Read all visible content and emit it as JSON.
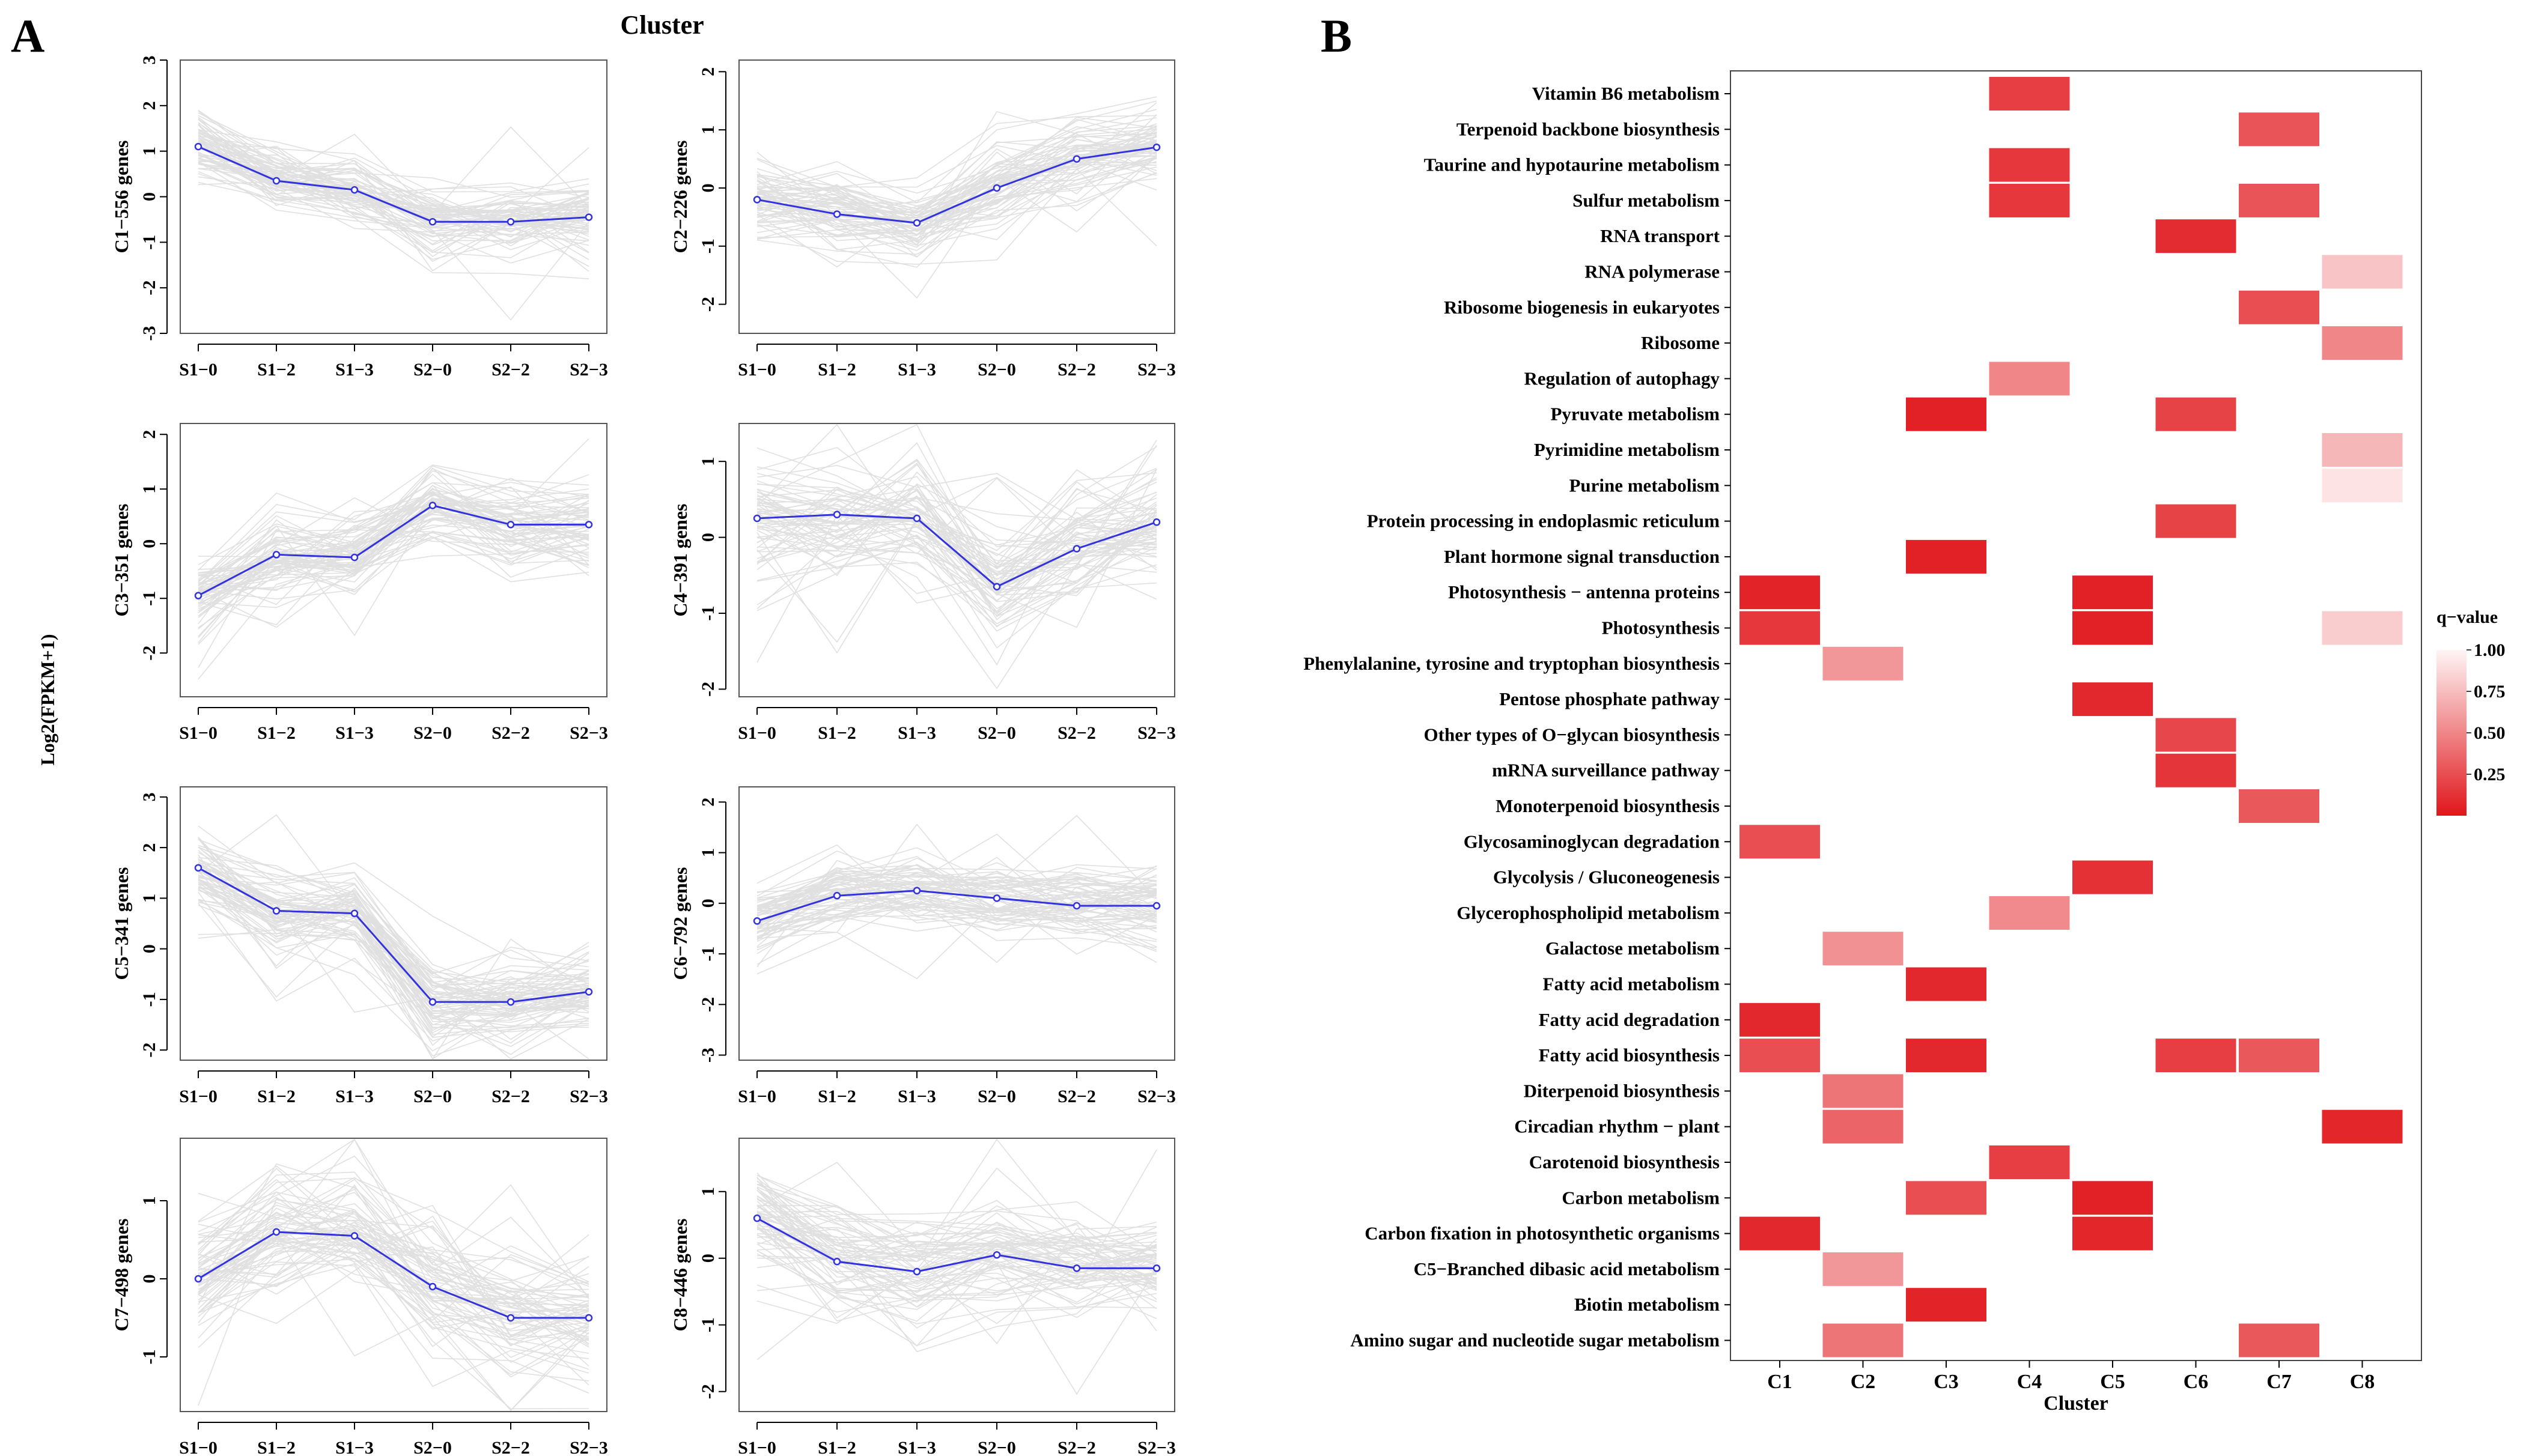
{
  "panels": {
    "left_letter": "A",
    "right_letter": "B"
  },
  "chart_data": [
    {
      "type": "line",
      "title": "Cluster",
      "ylabel": "Log2(FPKM+1)",
      "x": [
        "S1−0",
        "S1−2",
        "S1−3",
        "S2−0",
        "S2−2",
        "S2−3"
      ],
      "subplots": [
        {
          "label": "C1−556 genes",
          "ylim": [
            -3,
            3
          ],
          "yticks": [
            -3,
            -2,
            -1,
            0,
            1,
            2,
            3
          ],
          "values": [
            1.1,
            0.35,
            0.15,
            -0.55,
            -0.55,
            -0.45
          ]
        },
        {
          "label": "C2−226 genes",
          "ylim": [
            -2.5,
            2.2
          ],
          "yticks": [
            -2,
            -1,
            0,
            1,
            2
          ],
          "values": [
            -0.2,
            -0.45,
            -0.6,
            0.0,
            0.5,
            0.7
          ]
        },
        {
          "label": "C3−351 genes",
          "ylim": [
            -2.8,
            2.2
          ],
          "yticks": [
            -2,
            -1,
            0,
            1,
            2
          ],
          "values": [
            -0.95,
            -0.2,
            -0.25,
            0.7,
            0.35,
            0.35
          ]
        },
        {
          "label": "C4−391 genes",
          "ylim": [
            -2.1,
            1.5
          ],
          "yticks": [
            -2,
            -1,
            0,
            1
          ],
          "values": [
            0.25,
            0.3,
            0.25,
            -0.65,
            -0.15,
            0.2
          ]
        },
        {
          "label": "C5−341 genes",
          "ylim": [
            -2.2,
            3.2
          ],
          "yticks": [
            -2,
            -1,
            0,
            1,
            2,
            3
          ],
          "values": [
            1.6,
            0.75,
            0.7,
            -1.05,
            -1.05,
            -0.85
          ]
        },
        {
          "label": "C6−792 genes",
          "ylim": [
            -3.1,
            2.3
          ],
          "yticks": [
            -3,
            -2,
            -1,
            0,
            1,
            2
          ],
          "values": [
            -0.35,
            0.15,
            0.25,
            0.1,
            -0.05,
            -0.05
          ]
        },
        {
          "label": "C7−498 genes",
          "ylim": [
            -1.7,
            1.8
          ],
          "yticks": [
            -1,
            0,
            1
          ],
          "values": [
            0.0,
            0.6,
            0.55,
            -0.1,
            -0.5,
            -0.5
          ]
        },
        {
          "label": "C8−446 genes",
          "ylim": [
            -2.3,
            1.8
          ],
          "yticks": [
            -2,
            -1,
            0,
            1
          ],
          "values": [
            0.6,
            -0.05,
            -0.2,
            0.05,
            -0.15,
            -0.15
          ]
        }
      ]
    },
    {
      "type": "heatmap",
      "xlabel": "Cluster",
      "clusters": [
        "C1",
        "C2",
        "C3",
        "C4",
        "C5",
        "C6",
        "C7",
        "C8"
      ],
      "pathways": [
        "Vitamin B6 metabolism",
        "Terpenoid backbone biosynthesis",
        "Taurine and hypotaurine metabolism",
        "Sulfur metabolism",
        "RNA transport",
        "RNA polymerase",
        "Ribosome biogenesis in eukaryotes",
        "Ribosome",
        "Regulation of autophagy",
        "Pyruvate metabolism",
        "Pyrimidine metabolism",
        "Purine metabolism",
        "Protein processing in endoplasmic reticulum",
        "Plant hormone signal transduction",
        "Photosynthesis − antenna proteins",
        "Photosynthesis",
        "Phenylalanine, tyrosine and tryptophan biosynthesis",
        "Pentose phosphate pathway",
        "Other types of O−glycan biosynthesis",
        "mRNA surveillance pathway",
        "Monoterpenoid biosynthesis",
        "Glycosaminoglycan degradation",
        "Glycolysis / Gluconeogenesis",
        "Glycerophospholipid metabolism",
        "Galactose metabolism",
        "Fatty acid metabolism",
        "Fatty acid degradation",
        "Fatty acid biosynthesis",
        "Diterpenoid biosynthesis",
        "Circadian rhythm − plant",
        "Carotenoid biosynthesis",
        "Carbon metabolism",
        "Carbon fixation in photosynthetic organisms",
        "C5−Branched dibasic acid metabolism",
        "Biotin metabolism",
        "Amino sugar and nucleotide sugar metabolism"
      ],
      "cells": [
        {
          "pathway": 0,
          "cluster": 3,
          "q": 0.18
        },
        {
          "pathway": 1,
          "cluster": 6,
          "q": 0.28
        },
        {
          "pathway": 2,
          "cluster": 3,
          "q": 0.15
        },
        {
          "pathway": 3,
          "cluster": 3,
          "q": 0.15
        },
        {
          "pathway": 3,
          "cluster": 6,
          "q": 0.28
        },
        {
          "pathway": 4,
          "cluster": 5,
          "q": 0.1
        },
        {
          "pathway": 5,
          "cluster": 7,
          "q": 0.78
        },
        {
          "pathway": 6,
          "cluster": 6,
          "q": 0.25
        },
        {
          "pathway": 7,
          "cluster": 7,
          "q": 0.5
        },
        {
          "pathway": 8,
          "cluster": 3,
          "q": 0.5
        },
        {
          "pathway": 9,
          "cluster": 2,
          "q": 0.05
        },
        {
          "pathway": 9,
          "cluster": 5,
          "q": 0.2
        },
        {
          "pathway": 10,
          "cluster": 7,
          "q": 0.72
        },
        {
          "pathway": 11,
          "cluster": 7,
          "q": 0.92
        },
        {
          "pathway": 12,
          "cluster": 5,
          "q": 0.2
        },
        {
          "pathway": 13,
          "cluster": 2,
          "q": 0.05
        },
        {
          "pathway": 14,
          "cluster": 0,
          "q": 0.06
        },
        {
          "pathway": 14,
          "cluster": 4,
          "q": 0.05
        },
        {
          "pathway": 15,
          "cluster": 0,
          "q": 0.15
        },
        {
          "pathway": 15,
          "cluster": 4,
          "q": 0.05
        },
        {
          "pathway": 15,
          "cluster": 7,
          "q": 0.82
        },
        {
          "pathway": 16,
          "cluster": 1,
          "q": 0.58
        },
        {
          "pathway": 17,
          "cluster": 4,
          "q": 0.08
        },
        {
          "pathway": 18,
          "cluster": 5,
          "q": 0.22
        },
        {
          "pathway": 19,
          "cluster": 5,
          "q": 0.14
        },
        {
          "pathway": 20,
          "cluster": 6,
          "q": 0.3
        },
        {
          "pathway": 21,
          "cluster": 0,
          "q": 0.25
        },
        {
          "pathway": 22,
          "cluster": 4,
          "q": 0.12
        },
        {
          "pathway": 23,
          "cluster": 3,
          "q": 0.52
        },
        {
          "pathway": 24,
          "cluster": 1,
          "q": 0.55
        },
        {
          "pathway": 25,
          "cluster": 2,
          "q": 0.08
        },
        {
          "pathway": 26,
          "cluster": 0,
          "q": 0.08
        },
        {
          "pathway": 27,
          "cluster": 0,
          "q": 0.25
        },
        {
          "pathway": 27,
          "cluster": 2,
          "q": 0.08
        },
        {
          "pathway": 27,
          "cluster": 5,
          "q": 0.18
        },
        {
          "pathway": 27,
          "cluster": 6,
          "q": 0.3
        },
        {
          "pathway": 28,
          "cluster": 1,
          "q": 0.42
        },
        {
          "pathway": 29,
          "cluster": 1,
          "q": 0.35
        },
        {
          "pathway": 29,
          "cluster": 7,
          "q": 0.07
        },
        {
          "pathway": 30,
          "cluster": 3,
          "q": 0.18
        },
        {
          "pathway": 31,
          "cluster": 2,
          "q": 0.25
        },
        {
          "pathway": 31,
          "cluster": 4,
          "q": 0.05
        },
        {
          "pathway": 32,
          "cluster": 0,
          "q": 0.08
        },
        {
          "pathway": 32,
          "cluster": 4,
          "q": 0.07
        },
        {
          "pathway": 33,
          "cluster": 1,
          "q": 0.58
        },
        {
          "pathway": 34,
          "cluster": 2,
          "q": 0.06
        },
        {
          "pathway": 35,
          "cluster": 1,
          "q": 0.42
        },
        {
          "pathway": 35,
          "cluster": 6,
          "q": 0.3
        }
      ],
      "legend": {
        "title": "q−value",
        "ticks": [
          "1.00",
          "0.75",
          "0.50",
          "0.25"
        ],
        "tick_values": [
          1.0,
          0.75,
          0.5,
          0.25
        ],
        "color_low": "#e0161b",
        "color_high": "#fff5f5"
      }
    }
  ]
}
